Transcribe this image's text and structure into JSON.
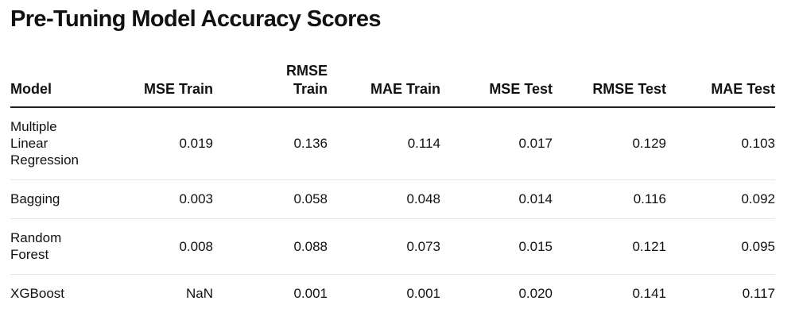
{
  "title": "Pre-Tuning Model Accuracy Scores",
  "chart_data": {
    "type": "table",
    "title": "Pre-Tuning Model Accuracy Scores",
    "columns": [
      "Model",
      "MSE Train",
      "RMSE Train",
      "MAE Train",
      "MSE Test",
      "RMSE Test",
      "MAE Test"
    ],
    "rows": [
      [
        "Multiple Linear Regression",
        "0.019",
        "0.136",
        "0.114",
        "0.017",
        "0.129",
        "0.103"
      ],
      [
        "Bagging",
        "0.003",
        "0.058",
        "0.048",
        "0.014",
        "0.116",
        "0.092"
      ],
      [
        "Random Forest",
        "0.008",
        "0.088",
        "0.073",
        "0.015",
        "0.121",
        "0.095"
      ],
      [
        "XGBoost",
        "NaN",
        "0.001",
        "0.001",
        "0.020",
        "0.141",
        "0.117"
      ]
    ]
  },
  "colors": {
    "text": "#111111",
    "header_rule": "#222222",
    "row_rule": "#e6e6e6",
    "background": "#ffffff"
  }
}
